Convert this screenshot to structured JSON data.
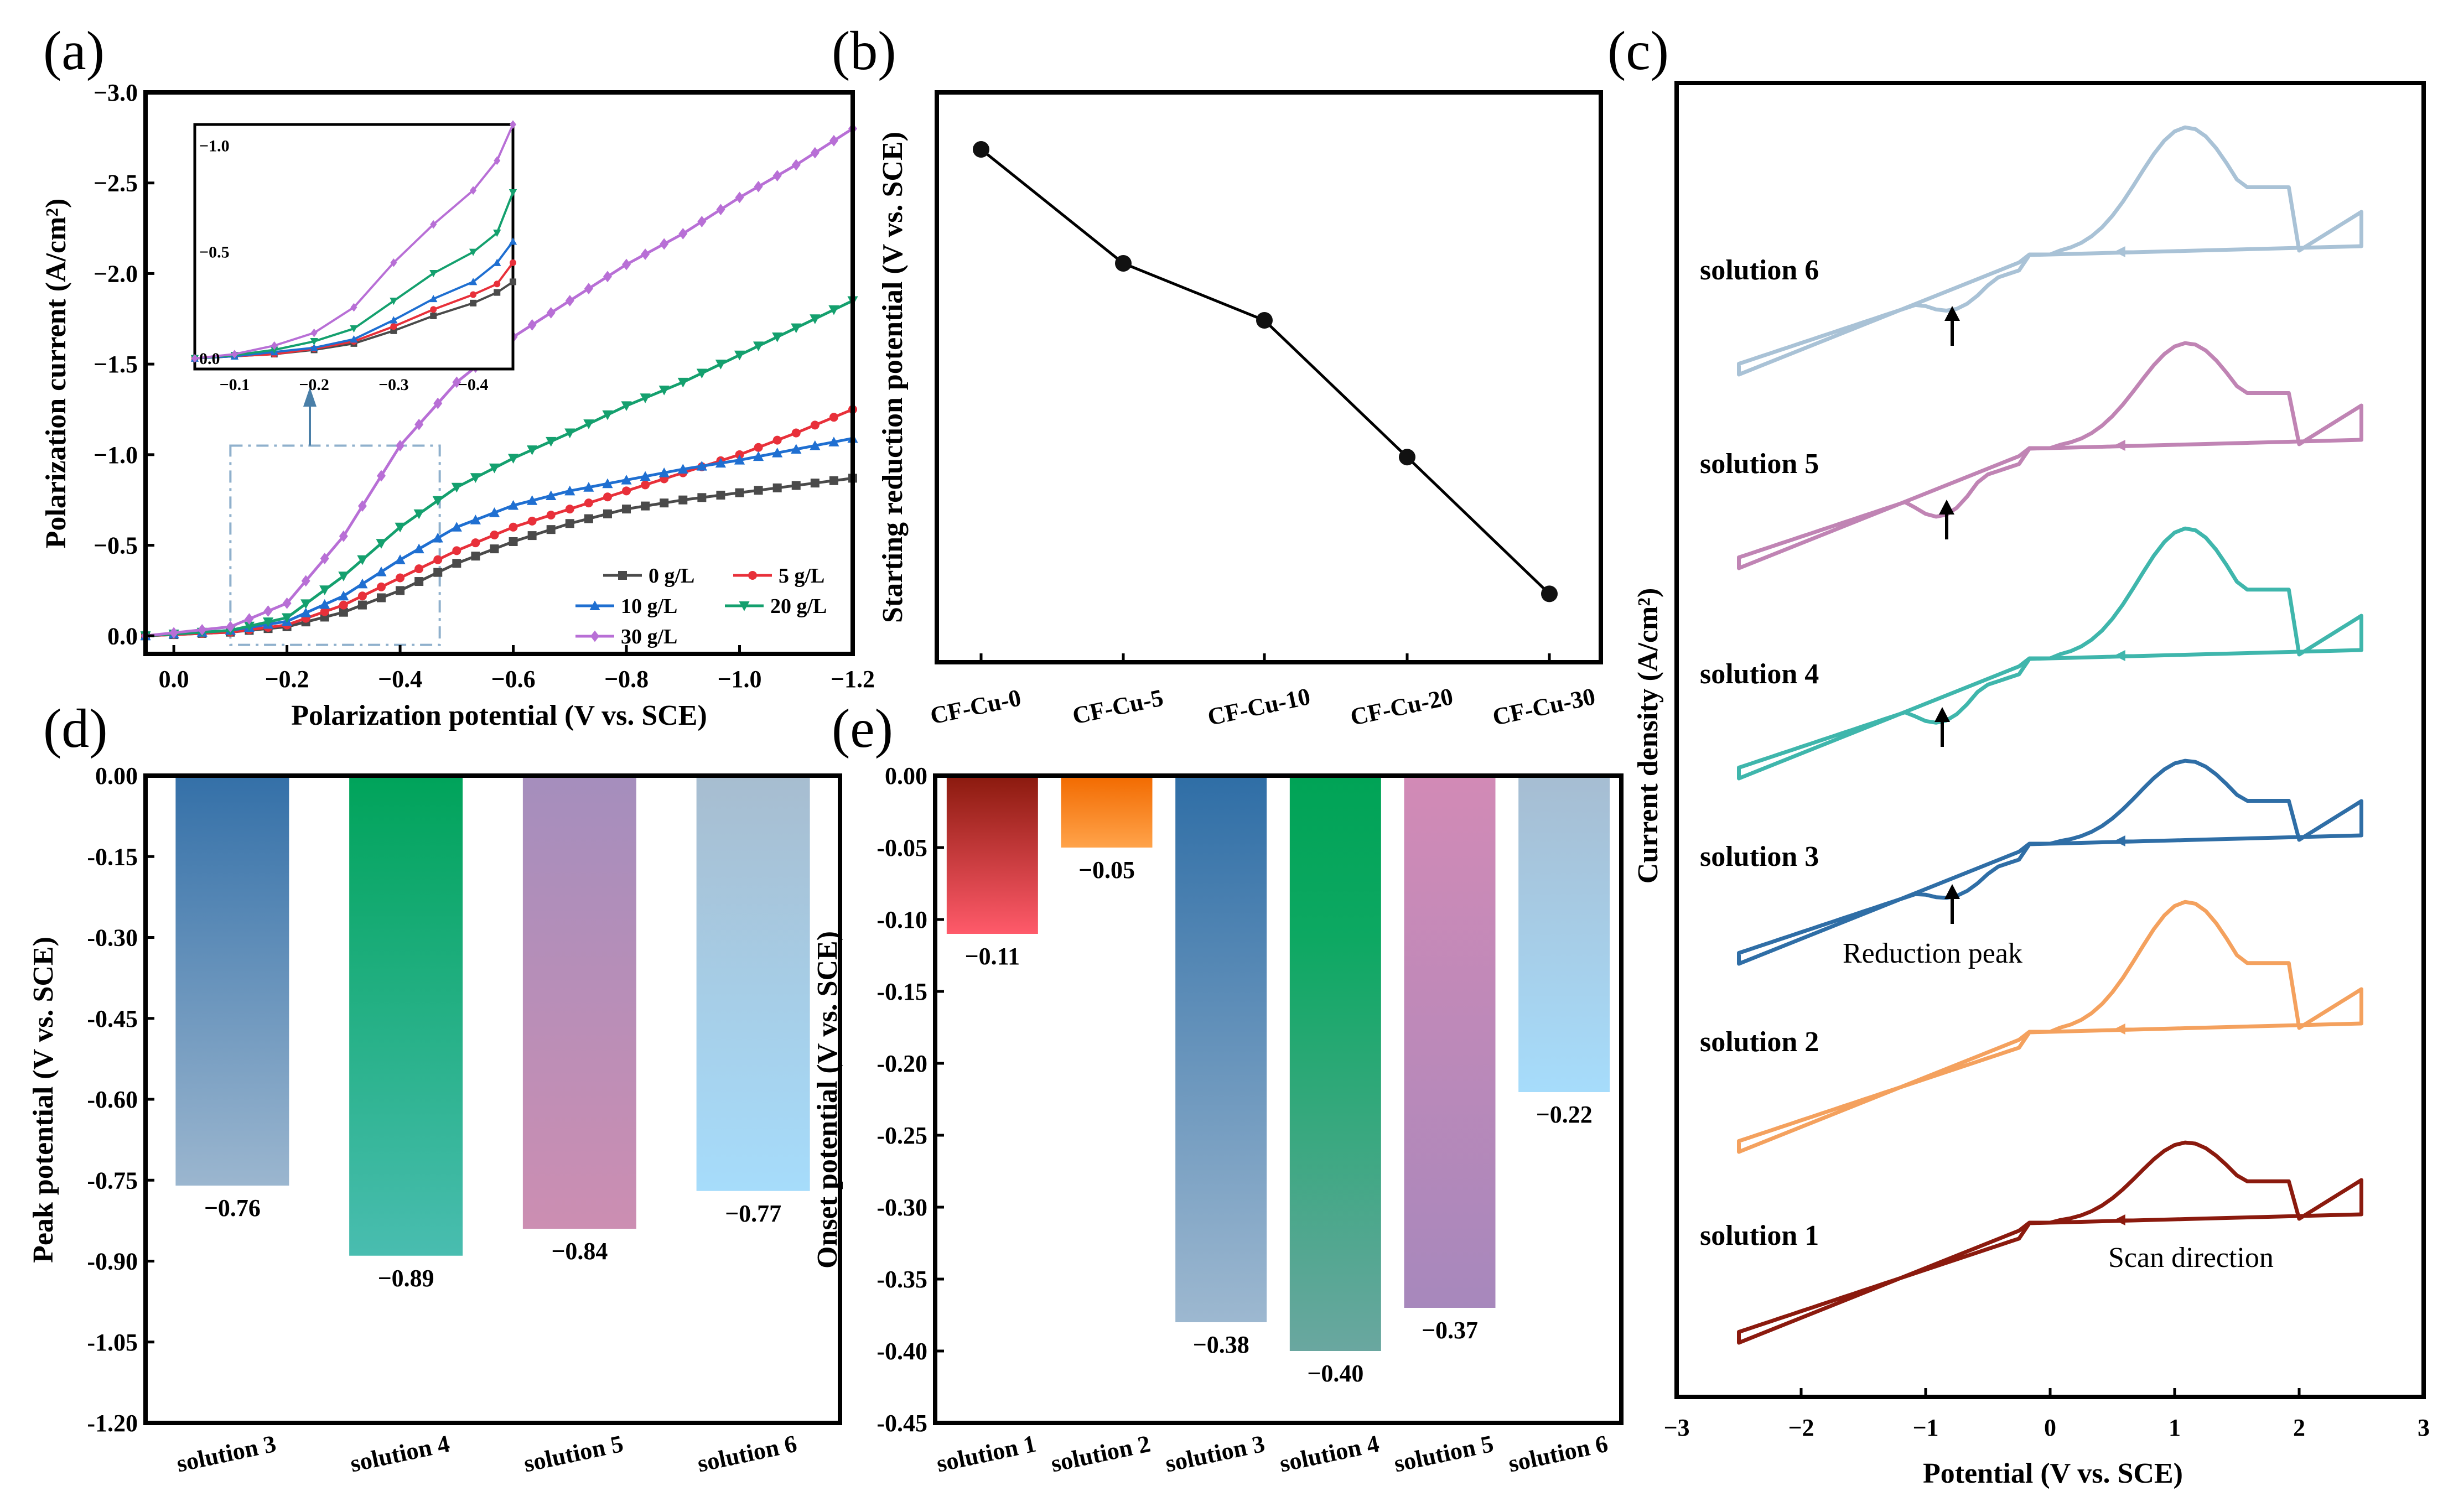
{
  "panel_labels": [
    "(a)",
    "(b)",
    "(c)",
    "(d)",
    "(e)"
  ],
  "colors": {
    "0 g/L": "#4a4a4a",
    "5 g/L": "#e8303a",
    "10 g/L": "#1f6fd1",
    "20 g/L": "#14a06e",
    "30 g/L": "#b86fd6",
    "solution 1": "#8b1a0e",
    "solution 2": "#f4a15e",
    "solution 3": "#2f6ea6",
    "solution 4": "#3fb6ac",
    "solution 5": "#c084b4",
    "solution 6": "#a9c2d6",
    "inset_box": "#8fb0cc"
  },
  "chart_data": [
    {
      "id": "a",
      "type": "line",
      "xlabel": "Polarization potential (V vs. SCE)",
      "ylabel": "Polarization current (A/cm²)",
      "xlim": [
        0.05,
        -1.2
      ],
      "ylim": [
        0.1,
        -3.0
      ],
      "xticks": [
        "0.0",
        "−0.2",
        "−0.4",
        "−0.6",
        "−0.8",
        "−1.0",
        "−1.2"
      ],
      "yticks": [
        "−3.0",
        "−2.5",
        "−2.0",
        "−1.5",
        "−1.0",
        "−0.5",
        "0.0"
      ],
      "series": [
        {
          "name": "0 g/L",
          "marker": "square",
          "x": [
            0.05,
            -0.1,
            -0.2,
            -0.3,
            -0.4,
            -0.5,
            -0.6,
            -0.7,
            -0.8,
            -0.9,
            -1.0,
            -1.1,
            -1.2
          ],
          "y": [
            0,
            -0.02,
            -0.05,
            -0.13,
            -0.25,
            -0.4,
            -0.52,
            -0.62,
            -0.7,
            -0.75,
            -0.79,
            -0.83,
            -0.87
          ]
        },
        {
          "name": "5 g/L",
          "marker": "circle",
          "x": [
            0.05,
            -0.1,
            -0.2,
            -0.3,
            -0.4,
            -0.5,
            -0.6,
            -0.7,
            -0.8,
            -0.9,
            -1.0,
            -1.1,
            -1.2
          ],
          "y": [
            0,
            -0.02,
            -0.06,
            -0.17,
            -0.32,
            -0.47,
            -0.6,
            -0.7,
            -0.8,
            -0.9,
            -1.0,
            -1.12,
            -1.25
          ]
        },
        {
          "name": "10 g/L",
          "marker": "triangle-up",
          "x": [
            0.05,
            -0.1,
            -0.2,
            -0.3,
            -0.4,
            -0.5,
            -0.6,
            -0.7,
            -0.8,
            -0.9,
            -1.0,
            -1.1,
            -1.2
          ],
          "y": [
            0,
            -0.03,
            -0.08,
            -0.22,
            -0.42,
            -0.6,
            -0.72,
            -0.8,
            -0.86,
            -0.92,
            -0.97,
            -1.03,
            -1.09
          ]
        },
        {
          "name": "20 g/L",
          "marker": "triangle-down",
          "x": [
            0.05,
            -0.1,
            -0.2,
            -0.3,
            -0.4,
            -0.5,
            -0.6,
            -0.7,
            -0.8,
            -0.9,
            -1.0,
            -1.1,
            -1.2
          ],
          "y": [
            0,
            -0.03,
            -0.1,
            -0.33,
            -0.6,
            -0.82,
            -0.98,
            -1.12,
            -1.27,
            -1.4,
            -1.55,
            -1.7,
            -1.85
          ]
        },
        {
          "name": "30 g/L",
          "marker": "diamond",
          "x": [
            0.05,
            -0.1,
            -0.2,
            -0.3,
            -0.4,
            -0.5,
            -0.6,
            -0.7,
            -0.8,
            -0.9,
            -1.0,
            -1.1,
            -1.2
          ],
          "y": [
            0,
            -0.05,
            -0.18,
            -0.55,
            -1.05,
            -1.4,
            -1.65,
            -1.85,
            -2.05,
            -2.22,
            -2.42,
            -2.6,
            -2.8
          ]
        }
      ],
      "inset": {
        "xlim": [
          -0.05,
          -0.45
        ],
        "ylim": [
          0.05,
          -1.1
        ],
        "xticks": [
          "−0.1",
          "−0.2",
          "−0.3",
          "−0.4"
        ],
        "yticks": [
          "−1.0",
          "−0.5",
          "0.0"
        ],
        "series_y": {
          "0 g/L": [
            0,
            -0.01,
            -0.02,
            -0.04,
            -0.07,
            -0.13,
            -0.2,
            -0.26,
            -0.31,
            -0.36
          ],
          "5 g/L": [
            0,
            -0.01,
            -0.02,
            -0.045,
            -0.08,
            -0.15,
            -0.23,
            -0.3,
            -0.35,
            -0.45
          ],
          "10 g/L": [
            0,
            -0.01,
            -0.03,
            -0.05,
            -0.09,
            -0.18,
            -0.28,
            -0.36,
            -0.45,
            -0.55
          ],
          "20 g/L": [
            0,
            -0.015,
            -0.04,
            -0.08,
            -0.14,
            -0.27,
            -0.4,
            -0.5,
            -0.59,
            -0.78
          ],
          "30 g/L": [
            0,
            -0.02,
            -0.06,
            -0.12,
            -0.24,
            -0.45,
            -0.63,
            -0.79,
            -0.93,
            -1.1
          ]
        },
        "x": [
          -0.05,
          -0.1,
          -0.15,
          -0.2,
          -0.25,
          -0.3,
          -0.35,
          -0.4,
          -0.43,
          -0.45
        ]
      },
      "zoom_box_range": {
        "x": [
          -0.1,
          -0.47
        ],
        "y": [
          0.05,
          -1.05
        ]
      }
    },
    {
      "id": "b",
      "type": "line",
      "ylabel": "Starting reduction potential (V vs. SCE)",
      "categories": [
        "CF-Cu-0",
        "CF-Cu-5",
        "CF-Cu-10",
        "CF-Cu-20",
        "CF-Cu-30"
      ],
      "values": [
        0.0,
        -0.1,
        -0.15,
        -0.27,
        -0.39
      ]
    },
    {
      "id": "c",
      "type": "line",
      "xlabel": "Potential (V vs. SCE)",
      "ylabel": "Current density (A/cm²)",
      "xlim": [
        -3,
        3
      ],
      "xticks": [
        "−3",
        "−2",
        "−1",
        "0",
        "1",
        "2",
        "3"
      ],
      "series": [
        "solution 1",
        "solution 2",
        "solution 3",
        "solution 4",
        "solution 5",
        "solution 6"
      ],
      "annotations": [
        "Reduction peak",
        "Scan direction"
      ]
    },
    {
      "id": "d",
      "type": "bar",
      "ylabel": "Peak potential (V vs. SCE)",
      "ylim": [
        -1.2,
        0
      ],
      "yticks": [
        "0.00",
        "-0.15",
        "-0.30",
        "-0.45",
        "-0.60",
        "-0.75",
        "-0.90",
        "-1.05",
        "-1.20"
      ],
      "categories": [
        "solution 3",
        "solution 4",
        "solution 5",
        "solution 6"
      ],
      "values": [
        -0.76,
        -0.89,
        -0.84,
        -0.77
      ],
      "value_labels": [
        "−0.76",
        "−0.89",
        "−0.84",
        "−0.77"
      ]
    },
    {
      "id": "e",
      "type": "bar",
      "ylabel": "Onset potential (V vs. SCE)",
      "ylim": [
        -0.45,
        0
      ],
      "yticks": [
        "0.00",
        "-0.05",
        "-0.10",
        "-0.15",
        "-0.20",
        "-0.25",
        "-0.30",
        "-0.35",
        "-0.40",
        "-0.45"
      ],
      "categories": [
        "solution 1",
        "solution 2",
        "solution 3",
        "solution 4",
        "solution 5",
        "solution 6"
      ],
      "values": [
        -0.11,
        -0.05,
        -0.38,
        -0.4,
        -0.37,
        -0.22
      ],
      "value_labels": [
        "−0.11",
        "−0.05",
        "−0.38",
        "−0.40",
        "−0.37",
        "−0.22"
      ]
    }
  ]
}
